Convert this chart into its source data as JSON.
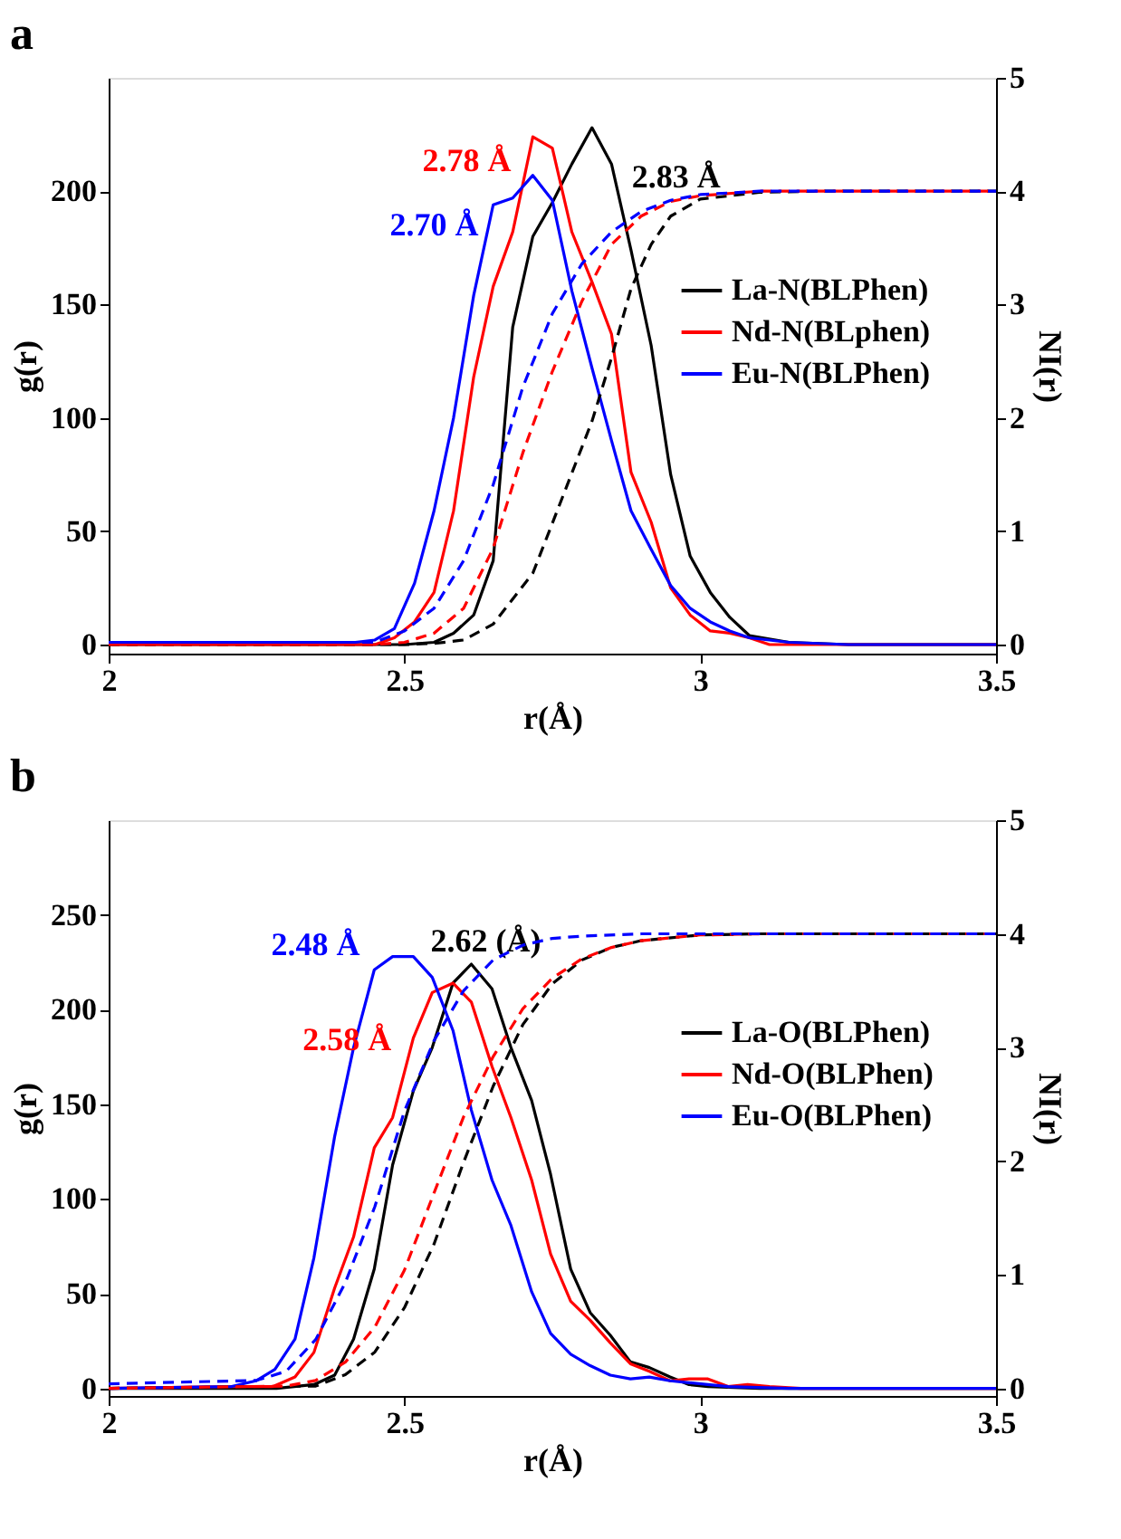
{
  "chart_data": [
    {
      "type": "line",
      "title": "a",
      "xlabel": "r(Å)",
      "ylabel": "g(r)",
      "y2label": "NI(r)",
      "xlim": [
        2,
        3.5
      ],
      "xticks": [
        2,
        2.5,
        3,
        3.5
      ],
      "ylim": [
        -4,
        250
      ],
      "yticks": [
        0,
        50,
        100,
        150,
        200
      ],
      "y2lim": [
        -0.08,
        5
      ],
      "y2ticks": [
        0,
        1,
        2,
        3,
        4,
        5
      ],
      "grid": false,
      "legend": "right",
      "series": [
        {
          "name": "La-N(BLPhen)",
          "color": "#000000",
          "line_style": "solid",
          "x": [
            2,
            2.5,
            2.55,
            2.583,
            2.617,
            2.65,
            2.683,
            2.717,
            2.75,
            2.783,
            2.817,
            2.85,
            2.883,
            2.917,
            2.95,
            2.983,
            3.017,
            3.05,
            3.083,
            3.15,
            3.25,
            3.5
          ],
          "values": [
            0,
            0,
            1,
            5,
            13,
            37,
            140,
            180,
            195,
            212,
            228,
            212,
            174,
            132,
            75,
            39,
            23,
            12,
            4,
            1,
            0,
            0
          ]
        },
        {
          "name": "Nd-N(BLphen)",
          "color": "#ff0000",
          "line_style": "solid",
          "x": [
            2,
            2.45,
            2.483,
            2.517,
            2.55,
            2.583,
            2.617,
            2.65,
            2.683,
            2.717,
            2.75,
            2.783,
            2.817,
            2.85,
            2.883,
            2.917,
            2.95,
            2.983,
            3.017,
            3.05,
            3.083,
            3.117,
            3.5
          ],
          "values": [
            0,
            0,
            3,
            10,
            23,
            59,
            118,
            158,
            182,
            224,
            219,
            182,
            160,
            137,
            76,
            54,
            25,
            13,
            6,
            5,
            3,
            0,
            0
          ]
        },
        {
          "name": "Eu-N(BLPhen)",
          "color": "#0000ff",
          "line_style": "solid",
          "x": [
            2,
            2.417,
            2.45,
            2.483,
            2.517,
            2.55,
            2.583,
            2.617,
            2.65,
            2.683,
            2.717,
            2.75,
            2.783,
            2.817,
            2.85,
            2.883,
            2.917,
            2.95,
            2.983,
            3.017,
            3.05,
            3.083,
            3.15,
            3.25,
            3.5
          ],
          "values": [
            1,
            1,
            2,
            7,
            27,
            59,
            100,
            154,
            194,
            197,
            207,
            196,
            156,
            122,
            90,
            59,
            42,
            26,
            16,
            10,
            6,
            3,
            1,
            0,
            0
          ]
        },
        {
          "color": "#000000",
          "axis": "y2",
          "line_style": "dashed",
          "x": [
            2,
            2.5,
            2.55,
            2.6,
            2.65,
            2.717,
            2.75,
            2.817,
            2.85,
            2.883,
            2.917,
            2.95,
            3,
            3.1,
            3.2,
            3.5
          ],
          "values": [
            0,
            0,
            0.01,
            0.04,
            0.18,
            0.63,
            1.07,
            1.97,
            2.53,
            3.14,
            3.53,
            3.78,
            3.93,
            3.99,
            4,
            4
          ]
        },
        {
          "color": "#ff0000",
          "axis": "y2",
          "line_style": "dashed",
          "x": [
            2,
            2.45,
            2.5,
            2.55,
            2.6,
            2.65,
            2.7,
            2.75,
            2.8,
            2.85,
            2.9,
            2.95,
            3,
            3.1,
            3.5
          ],
          "values": [
            0,
            0,
            0.02,
            0.1,
            0.32,
            0.85,
            1.69,
            2.41,
            3.03,
            3.53,
            3.78,
            3.91,
            3.96,
            4,
            4
          ]
        },
        {
          "color": "#0000ff",
          "axis": "y2",
          "line_style": "dashed",
          "x": [
            2,
            2.45,
            2.5,
            2.55,
            2.6,
            2.65,
            2.7,
            2.75,
            2.8,
            2.85,
            2.9,
            2.95,
            3,
            3.1,
            3.5
          ],
          "values": [
            0.02,
            0.02,
            0.12,
            0.32,
            0.74,
            1.41,
            2.27,
            2.92,
            3.36,
            3.64,
            3.82,
            3.92,
            3.97,
            4,
            4
          ]
        }
      ],
      "annotations": [
        "2.83 Å",
        "2.78 Å",
        "2.70 Å"
      ]
    },
    {
      "type": "line",
      "title": "b",
      "xlabel": "r(Å)",
      "ylabel": "g(r)",
      "y2label": "NI(r)",
      "xlim": [
        2,
        3.5
      ],
      "xticks": [
        2,
        2.5,
        3,
        3.5
      ],
      "ylim": [
        -4,
        300
      ],
      "yticks": [
        0,
        50,
        100,
        150,
        200,
        250
      ],
      "y2lim": [
        -0.067,
        5
      ],
      "y2ticks": [
        0,
        1,
        2,
        3,
        4,
        5
      ],
      "grid": false,
      "legend": "right",
      "series": [
        {
          "name": "La-O(BLPhen)",
          "color": "#000000",
          "line_style": "solid",
          "x": [
            2,
            2.284,
            2.347,
            2.382,
            2.414,
            2.449,
            2.48,
            2.515,
            2.547,
            2.582,
            2.613,
            2.648,
            2.68,
            2.715,
            2.747,
            2.781,
            2.814,
            2.848,
            2.882,
            2.914,
            2.949,
            2.981,
            3.013,
            3.1,
            3.5
          ],
          "values": [
            0,
            0,
            2,
            7,
            26,
            63,
            118,
            157,
            180,
            214,
            224,
            211,
            180,
            152,
            113,
            63,
            40,
            28,
            14,
            11,
            6,
            2,
            1,
            0,
            0
          ]
        },
        {
          "name": "Nd-O(BLPhen)",
          "color": "#ff0000",
          "line_style": "solid",
          "x": [
            2,
            2.214,
            2.278,
            2.315,
            2.347,
            2.382,
            2.414,
            2.449,
            2.48,
            2.515,
            2.547,
            2.582,
            2.613,
            2.648,
            2.68,
            2.715,
            2.747,
            2.781,
            2.814,
            2.848,
            2.882,
            2.914,
            2.949,
            2.981,
            3.013,
            3.047,
            3.08,
            3.117,
            3.17,
            3.5
          ],
          "values": [
            0,
            1,
            1,
            6,
            19,
            53,
            80,
            127,
            143,
            185,
            209,
            214,
            204,
            170,
            143,
            110,
            71,
            46,
            36,
            24,
            13,
            9,
            4,
            5,
            5,
            1,
            2,
            1,
            0,
            0
          ]
        },
        {
          "name": "Eu-O(BLPhen)",
          "color": "#0000ff",
          "line_style": "solid",
          "x": [
            2,
            2.208,
            2.249,
            2.281,
            2.315,
            2.347,
            2.382,
            2.414,
            2.449,
            2.48,
            2.515,
            2.547,
            2.582,
            2.613,
            2.648,
            2.68,
            2.715,
            2.747,
            2.781,
            2.814,
            2.848,
            2.882,
            2.914,
            2.949,
            2.981,
            3.047,
            3.15,
            3.5
          ],
          "values": [
            0,
            1,
            4,
            10,
            26,
            69,
            133,
            180,
            221,
            228,
            228,
            217,
            189,
            147,
            110,
            86,
            51,
            29,
            18,
            12,
            7,
            5,
            6,
            4,
            3,
            1,
            0,
            0
          ]
        },
        {
          "color": "#000000",
          "axis": "y2",
          "line_style": "dashed",
          "x": [
            2,
            2.35,
            2.4,
            2.45,
            2.5,
            2.55,
            2.6,
            2.65,
            2.7,
            2.75,
            2.8,
            2.85,
            2.9,
            3,
            3.1,
            3.5
          ],
          "values": [
            0,
            0.02,
            0.12,
            0.32,
            0.71,
            1.27,
            1.99,
            2.66,
            3.2,
            3.56,
            3.77,
            3.88,
            3.94,
            3.99,
            4,
            4
          ]
        },
        {
          "color": "#ff0000",
          "axis": "y2",
          "line_style": "dashed",
          "x": [
            2,
            2.3,
            2.35,
            2.4,
            2.45,
            2.5,
            2.55,
            2.6,
            2.65,
            2.7,
            2.75,
            2.8,
            2.85,
            2.9,
            3,
            3.1,
            3.5
          ],
          "values": [
            0,
            0.02,
            0.07,
            0.23,
            0.54,
            1.04,
            1.72,
            2.39,
            2.92,
            3.34,
            3.61,
            3.78,
            3.88,
            3.94,
            3.99,
            4,
            4
          ]
        },
        {
          "color": "#0000ff",
          "axis": "y2",
          "line_style": "dashed",
          "x": [
            2,
            2.25,
            2.3,
            2.35,
            2.4,
            2.45,
            2.5,
            2.55,
            2.6,
            2.65,
            2.7,
            2.75,
            2.8,
            2.9,
            3.5
          ],
          "values": [
            0.04,
            0.07,
            0.15,
            0.43,
            0.93,
            1.6,
            2.44,
            3.06,
            3.5,
            3.77,
            3.9,
            3.96,
            3.98,
            4,
            4
          ]
        }
      ],
      "annotations": [
        "2.62 (Å)",
        "2.58 Å",
        "2.48 Å"
      ]
    }
  ]
}
